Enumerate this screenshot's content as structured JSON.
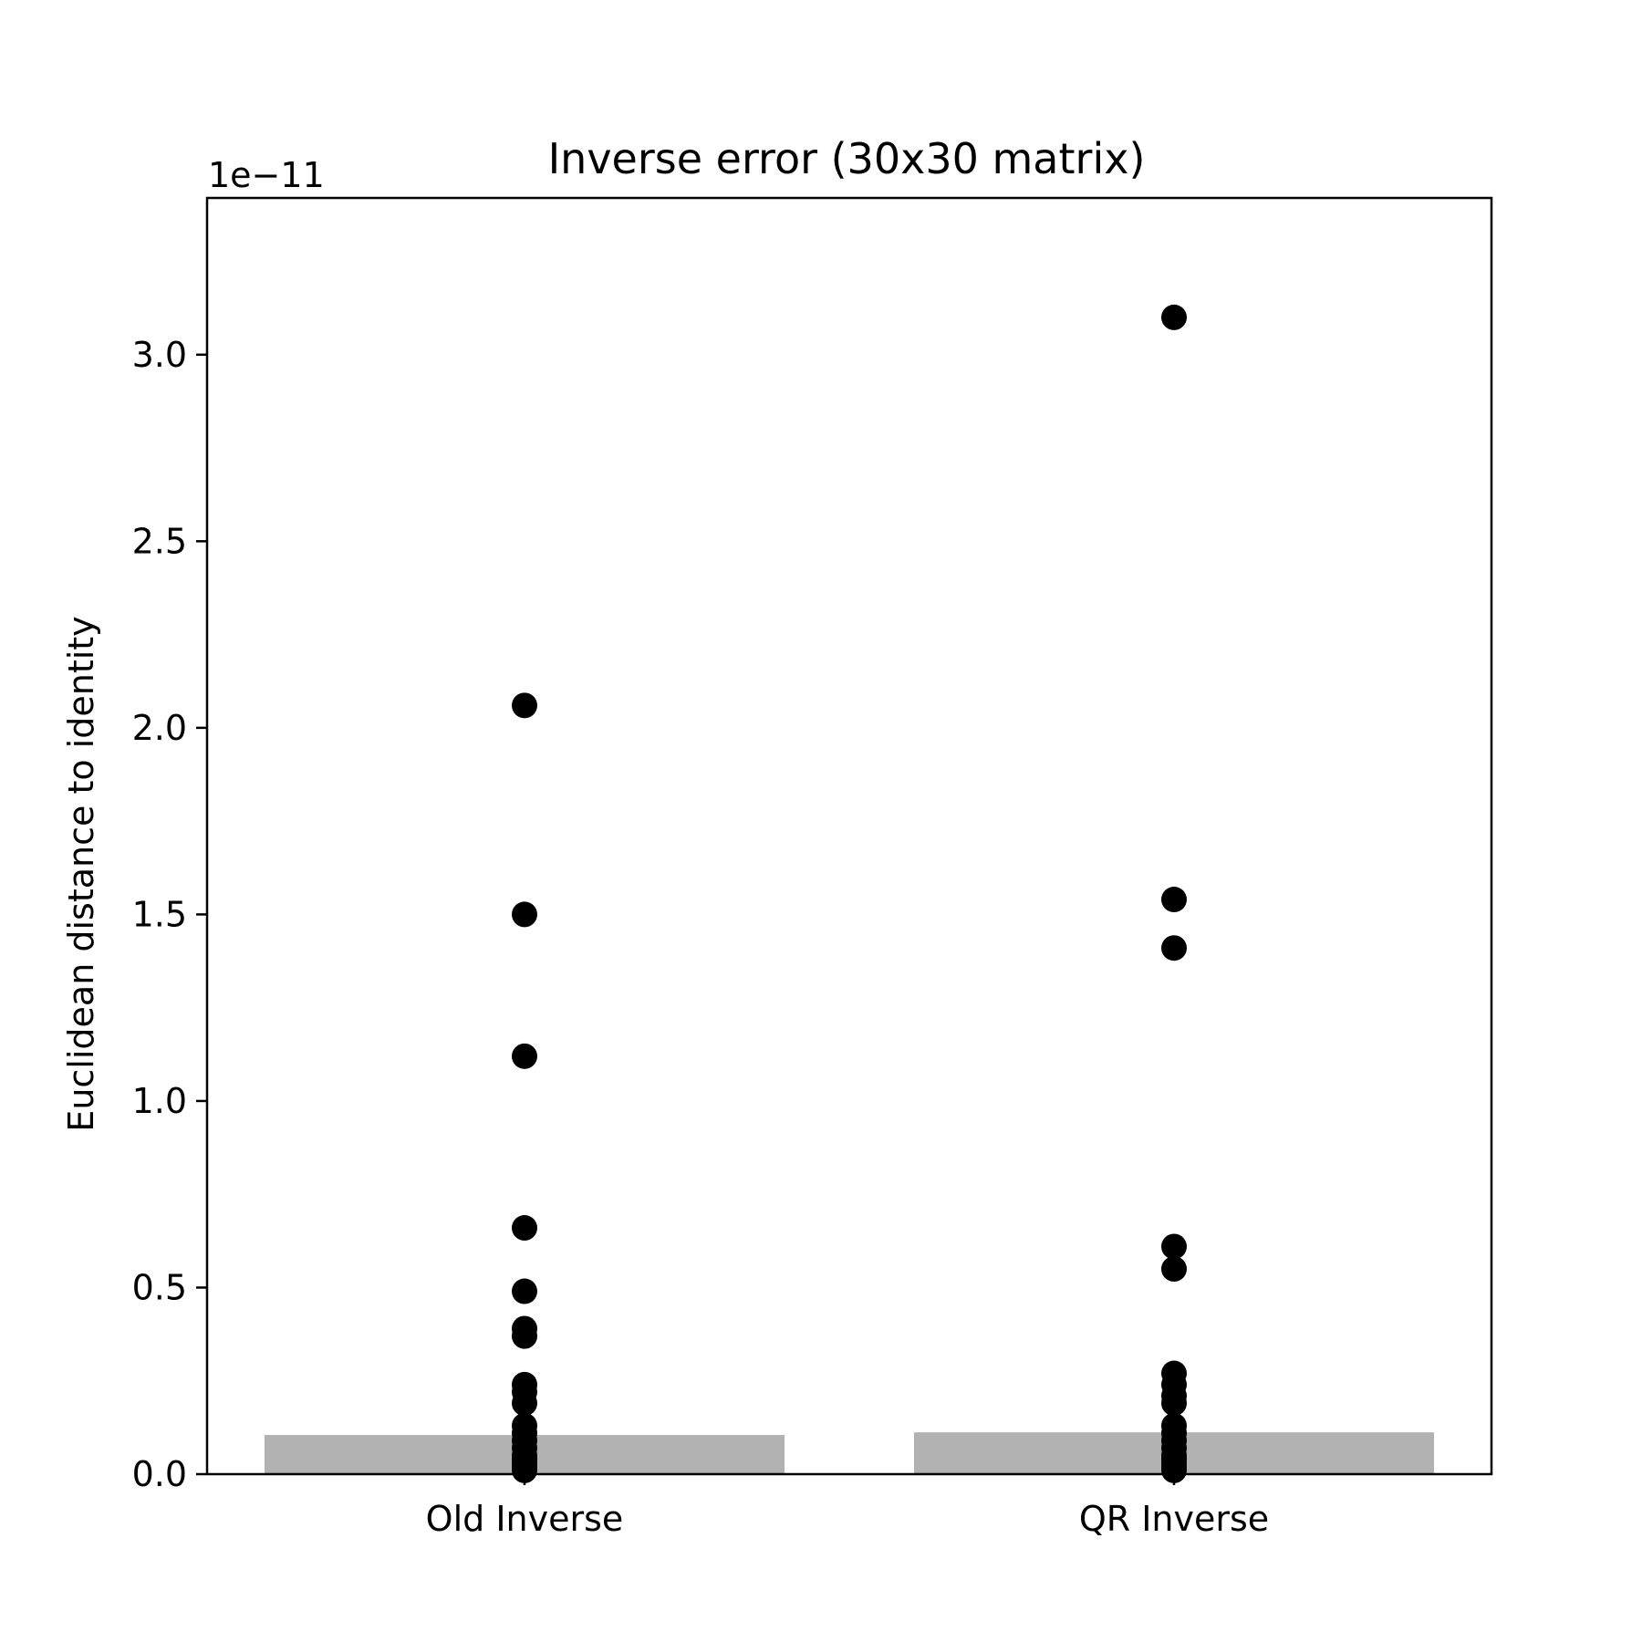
{
  "chart_data": {
    "type": "bar",
    "title": "Inverse error (30x30 matrix)",
    "xlabel": "",
    "ylabel": "Euclidean distance to identity",
    "offset_text": "1e−11",
    "categories": [
      "Old Inverse",
      "QR Inverse"
    ],
    "bar_values": [
      0.105,
      0.112
    ],
    "scatter": [
      [
        2.06,
        1.5,
        1.12,
        0.66,
        0.49,
        0.39,
        0.37,
        0.24,
        0.22,
        0.19,
        0.13,
        0.11,
        0.09,
        0.07,
        0.05,
        0.04,
        0.03,
        0.02,
        0.01
      ],
      [
        3.1,
        1.54,
        1.41,
        0.61,
        0.55,
        0.27,
        0.24,
        0.21,
        0.19,
        0.13,
        0.11,
        0.09,
        0.07,
        0.05,
        0.04,
        0.03,
        0.02,
        0.01
      ]
    ],
    "yticks": [
      "0.0",
      "0.5",
      "1.0",
      "1.5",
      "2.0",
      "2.5",
      "3.0"
    ],
    "ylim": [
      0,
      3.42
    ],
    "grid": false,
    "legend": "none",
    "colors": {
      "bar": "#b2b2b2",
      "point": "#000000",
      "axis": "#000000"
    }
  }
}
